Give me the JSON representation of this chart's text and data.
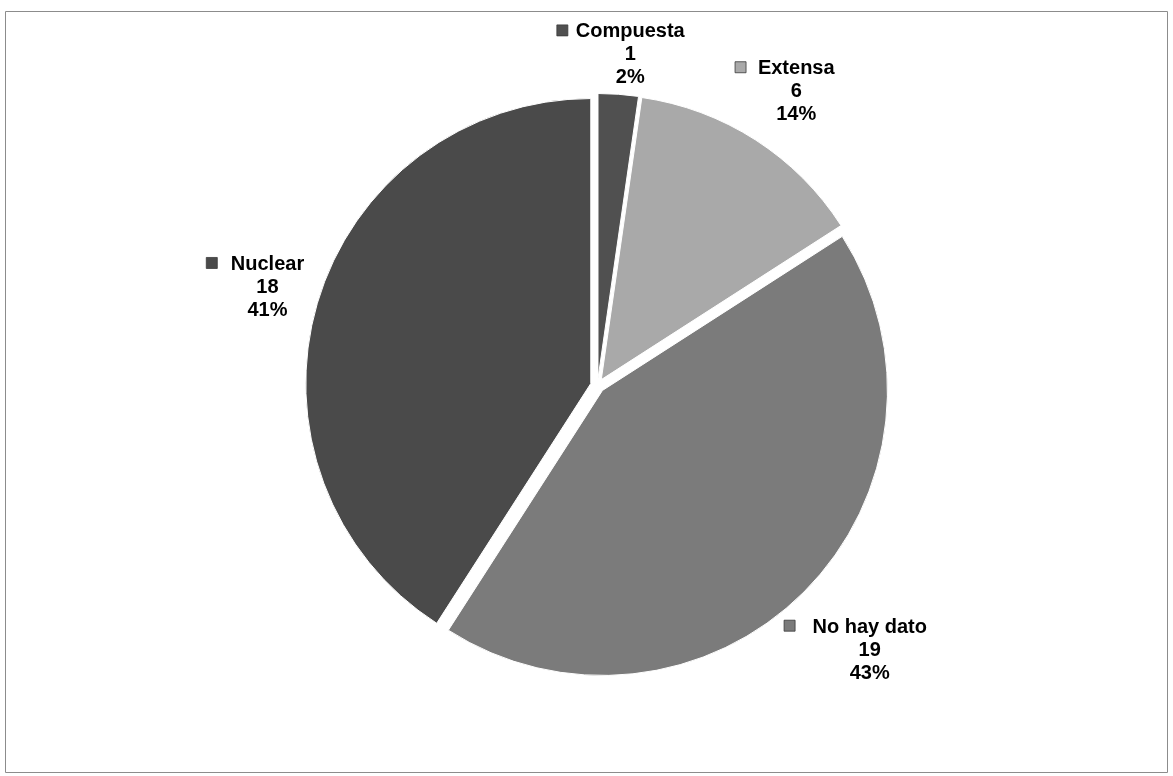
{
  "chart_data": {
    "type": "pie",
    "categories": [
      "Compuesta",
      "Extensa",
      "No hay dato",
      "Nuclear"
    ],
    "values": [
      1,
      6,
      19,
      18
    ],
    "colors": [
      "#505050",
      "#a9a9a9",
      "#7b7b7b",
      "#4a4a4a"
    ],
    "value_labels": [
      "1\n2%",
      "6\n14%",
      "19\n43%",
      "18\n41%"
    ],
    "legend": "center"
  }
}
